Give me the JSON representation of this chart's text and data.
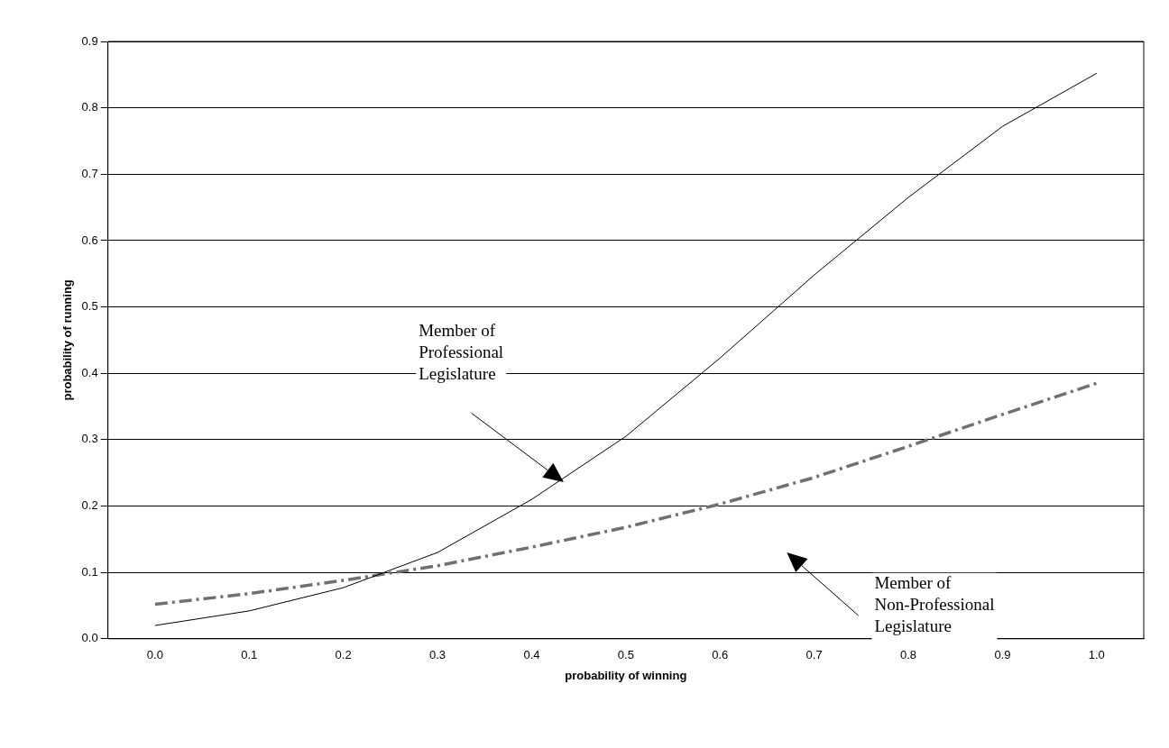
{
  "chart_data": {
    "type": "line",
    "xlabel": "probability of winning",
    "ylabel": "probability of running",
    "categories": [
      "0.0",
      "0.1",
      "0.2",
      "0.3",
      "0.4",
      "0.5",
      "0.6",
      "0.7",
      "0.8",
      "0.9",
      "1.0"
    ],
    "series": [
      {
        "color": "#000000",
        "line_style": "solid",
        "values": [
          0.02,
          0.042,
          0.077,
          0.13,
          0.21,
          0.305,
          0.423,
          0.548,
          0.665,
          0.772,
          0.852
        ]
      },
      {
        "color": "#707070",
        "line_style": "dashed",
        "values": [
          0.052,
          0.068,
          0.088,
          0.11,
          0.138,
          0.168,
          0.203,
          0.243,
          0.29,
          0.338,
          0.385
        ]
      }
    ],
    "ylim": [
      0,
      0.9
    ],
    "yticks": [
      {
        "value": 0,
        "label": "0.0"
      },
      0.1,
      0.2,
      0.3,
      0.4,
      0.5,
      0.6,
      0.7,
      0.8,
      0.9
    ],
    "grid": "y",
    "marker": "none",
    "annotations": [
      "Member of\nProfessional\nLegislature",
      "Member of\nNon-Professional\nLegislature"
    ]
  }
}
